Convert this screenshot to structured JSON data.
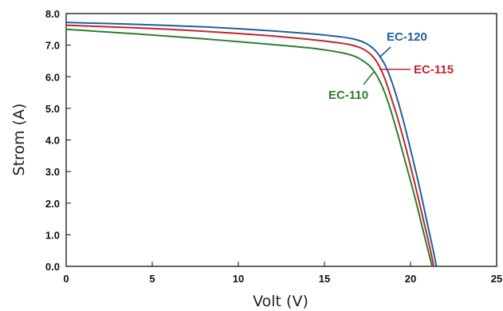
{
  "chart_data": {
    "type": "line",
    "xlabel": "Volt (V)",
    "ylabel": "Strom (A)",
    "xlim": [
      0,
      25
    ],
    "ylim": [
      0,
      8
    ],
    "x_ticks": [
      "0",
      "5",
      "10",
      "15",
      "20",
      "25"
    ],
    "y_ticks": [
      "0.0",
      "1.0",
      "2.0",
      "3.0",
      "4.0",
      "5.0",
      "6.0",
      "7.0",
      "8.0"
    ],
    "grid": false,
    "series": [
      {
        "name": "EC-120",
        "color": "#1f5fa0",
        "x": [
          0,
          2,
          4,
          6,
          8,
          10,
          12,
          14,
          15,
          16,
          16.8,
          17.4,
          17.9,
          18.3,
          18.6,
          19.0,
          19.5,
          20.0,
          20.5,
          21.0,
          21.3,
          21.5
        ],
        "y": [
          7.72,
          7.69,
          7.66,
          7.62,
          7.58,
          7.52,
          7.45,
          7.37,
          7.32,
          7.26,
          7.18,
          7.06,
          6.86,
          6.58,
          6.28,
          5.7,
          4.78,
          3.7,
          2.55,
          1.3,
          0.55,
          0.0
        ]
      },
      {
        "name": "EC-115",
        "color": "#c0272d",
        "x": [
          0,
          2,
          4,
          6,
          8,
          10,
          12,
          14,
          15,
          16,
          16.6,
          17.2,
          17.7,
          18.1,
          18.5,
          18.9,
          19.3,
          19.8,
          20.3,
          20.8,
          21.1,
          21.35
        ],
        "y": [
          7.63,
          7.59,
          7.55,
          7.5,
          7.44,
          7.37,
          7.29,
          7.19,
          7.13,
          7.06,
          7.0,
          6.89,
          6.7,
          6.42,
          5.95,
          5.3,
          4.6,
          3.6,
          2.5,
          1.35,
          0.65,
          0.0
        ]
      },
      {
        "name": "EC-110",
        "color": "#2e7d32",
        "x": [
          0,
          2,
          4,
          6,
          8,
          10,
          12,
          14,
          15,
          16,
          16.7,
          17.2,
          17.7,
          18.1,
          18.5,
          18.9,
          19.3,
          19.7,
          20.2,
          20.7,
          21.0,
          21.25
        ],
        "y": [
          7.5,
          7.43,
          7.36,
          7.28,
          7.2,
          7.11,
          7.02,
          6.92,
          6.85,
          6.76,
          6.66,
          6.52,
          6.3,
          5.98,
          5.5,
          4.85,
          4.1,
          3.3,
          2.3,
          1.2,
          0.55,
          0.0
        ]
      }
    ]
  }
}
